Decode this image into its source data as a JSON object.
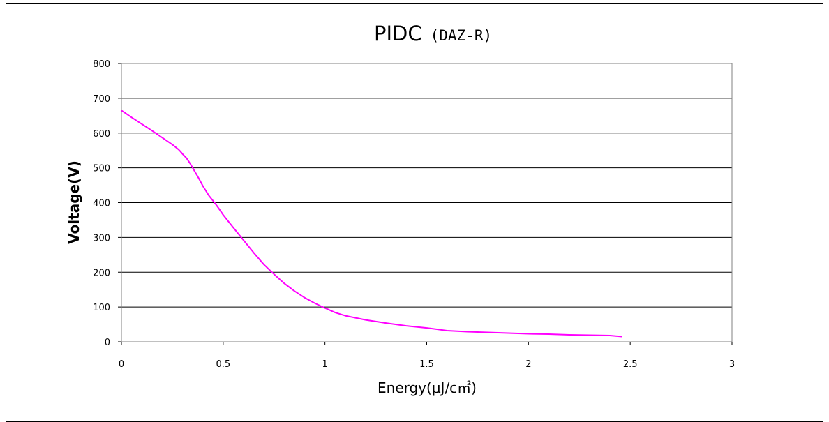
{
  "chart_data": {
    "type": "line",
    "title": "PIDC",
    "subtitle": "(DAZ-R)",
    "xlabel": "Energy(μJ/c㎡)",
    "ylabel": "Voltage(V)",
    "xlim": [
      0,
      3
    ],
    "ylim": [
      0,
      800
    ],
    "x_ticks": [
      0,
      0.5,
      1,
      1.5,
      2,
      2.5,
      3
    ],
    "x_tick_labels": [
      "0",
      "0.5",
      "1",
      "1.5",
      "2",
      "2.5",
      "3"
    ],
    "y_ticks": [
      0,
      100,
      200,
      300,
      400,
      500,
      600,
      700,
      800
    ],
    "y_tick_labels": [
      "0",
      "100",
      "200",
      "300",
      "400",
      "500",
      "600",
      "700",
      "800"
    ],
    "grid": "horizontal",
    "series": [
      {
        "color": "#ff00ff",
        "x": [
          0,
          0.05,
          0.1,
          0.15,
          0.2,
          0.25,
          0.28,
          0.29,
          0.3,
          0.32,
          0.34,
          0.36,
          0.38,
          0.4,
          0.43,
          0.46,
          0.48,
          0.5,
          0.55,
          0.6,
          0.65,
          0.7,
          0.75,
          0.8,
          0.85,
          0.9,
          0.95,
          1.0,
          1.05,
          1.1,
          1.2,
          1.3,
          1.4,
          1.5,
          1.55,
          1.6,
          1.7,
          1.8,
          1.9,
          2.0,
          2.1,
          2.2,
          2.3,
          2.4,
          2.46
        ],
        "y": [
          665,
          645,
          626,
          607,
          587,
          567,
          553,
          547,
          540,
          528,
          510,
          490,
          470,
          448,
          420,
          398,
          382,
          365,
          328,
          292,
          256,
          222,
          194,
          168,
          146,
          127,
          111,
          97,
          84,
          75,
          63,
          54,
          46,
          40,
          36,
          32,
          29,
          27,
          25,
          23,
          22,
          20,
          19,
          18,
          15
        ]
      }
    ]
  }
}
